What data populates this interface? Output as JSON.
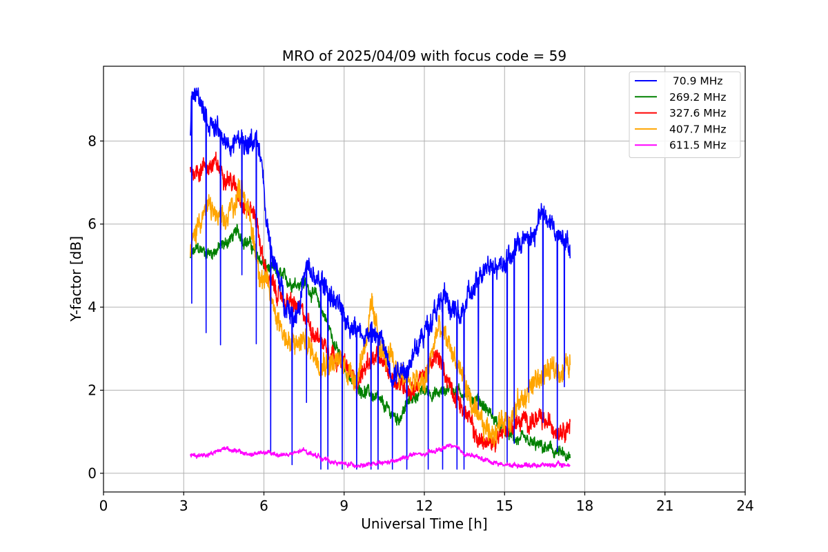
{
  "chart_data": {
    "type": "line",
    "title": "MRO of 2025/04/09 with focus code = 59",
    "xlabel": "Universal Time [h]",
    "ylabel": "Y-factor [dB]",
    "xlim": [
      0,
      24
    ],
    "ylim": [
      -0.45,
      9.8
    ],
    "xticks": [
      0,
      3,
      6,
      9,
      12,
      15,
      18,
      21,
      24
    ],
    "yticks": [
      0,
      2,
      4,
      6,
      8
    ],
    "grid": true,
    "legend_position": "top-right",
    "series": [
      {
        "name": " 70.9 MHz",
        "color": "#0000ff",
        "noise": 0.35,
        "dips": true,
        "x": [
          3.25,
          3.3,
          3.5,
          3.8,
          4.2,
          4.6,
          5.0,
          5.4,
          5.7,
          5.9,
          6.1,
          6.4,
          6.8,
          7.2,
          7.6,
          8.0,
          8.4,
          8.8,
          9.2,
          9.6,
          10.0,
          10.4,
          10.8,
          11.2,
          11.6,
          12.0,
          12.4,
          12.8,
          13.2,
          13.6,
          14.0,
          14.4,
          14.8,
          15.2,
          15.6,
          16.0,
          16.4,
          16.8,
          17.2,
          17.45
        ],
        "y": [
          8.2,
          9.2,
          9.1,
          8.6,
          8.3,
          7.9,
          8.0,
          7.9,
          8.1,
          7.5,
          6.0,
          5.0,
          4.1,
          3.8,
          4.9,
          4.6,
          4.4,
          4.0,
          3.6,
          3.4,
          3.4,
          3.2,
          2.4,
          2.5,
          2.8,
          3.4,
          3.9,
          4.2,
          3.8,
          4.2,
          4.5,
          5.1,
          5.0,
          5.2,
          5.6,
          5.6,
          6.3,
          5.9,
          5.7,
          5.4
        ]
      },
      {
        "name": "269.2 MHz",
        "color": "#008000",
        "noise": 0.2,
        "dips": false,
        "x": [
          3.25,
          3.5,
          4.0,
          4.5,
          5.0,
          5.5,
          6.0,
          6.5,
          7.0,
          7.5,
          8.0,
          8.5,
          9.0,
          9.5,
          10.0,
          10.5,
          11.0,
          11.5,
          12.0,
          12.5,
          13.0,
          13.5,
          14.0,
          14.5,
          15.0,
          15.5,
          16.0,
          16.5,
          17.0,
          17.45
        ],
        "y": [
          5.2,
          5.4,
          5.3,
          5.5,
          5.8,
          5.5,
          5.0,
          4.8,
          4.6,
          4.6,
          4.2,
          3.4,
          2.5,
          2.1,
          1.9,
          1.6,
          1.3,
          1.8,
          2.0,
          1.9,
          2.1,
          1.9,
          1.8,
          1.4,
          1.0,
          0.8,
          0.7,
          0.6,
          0.5,
          0.3
        ]
      },
      {
        "name": "327.6 MHz",
        "color": "#ff0000",
        "noise": 0.3,
        "dips": false,
        "x": [
          3.25,
          3.5,
          3.8,
          4.2,
          4.6,
          5.0,
          5.4,
          5.7,
          6.0,
          6.3,
          6.7,
          7.2,
          7.6,
          8.0,
          8.5,
          9.0,
          9.5,
          10.0,
          10.5,
          11.0,
          11.5,
          12.0,
          12.5,
          13.0,
          13.5,
          14.0,
          14.5,
          15.0,
          15.5,
          16.0,
          16.5,
          17.0,
          17.45
        ],
        "y": [
          7.3,
          7.3,
          7.4,
          7.4,
          7.2,
          6.8,
          6.4,
          6.2,
          5.0,
          4.5,
          4.2,
          4.0,
          3.7,
          3.3,
          3.0,
          2.6,
          2.2,
          2.8,
          2.6,
          2.2,
          2.0,
          2.4,
          2.8,
          2.1,
          1.5,
          0.8,
          0.7,
          1.1,
          1.2,
          1.3,
          1.2,
          1.1,
          1.2
        ]
      },
      {
        "name": "407.7 MHz",
        "color": "#ffa500",
        "noise": 0.4,
        "dips": false,
        "x": [
          3.25,
          3.6,
          4.0,
          4.5,
          4.8,
          5.2,
          5.5,
          5.8,
          6.1,
          6.5,
          7.0,
          7.5,
          8.0,
          8.5,
          9.0,
          9.5,
          10.0,
          10.5,
          11.0,
          11.5,
          12.0,
          12.5,
          13.0,
          13.5,
          14.0,
          14.5,
          15.0,
          15.5,
          16.0,
          16.5,
          17.0,
          17.45
        ],
        "y": [
          5.3,
          6.2,
          6.4,
          5.9,
          6.4,
          7.0,
          6.0,
          5.0,
          4.5,
          3.8,
          3.0,
          3.2,
          2.8,
          2.7,
          2.6,
          2.3,
          3.9,
          2.8,
          2.5,
          2.2,
          2.1,
          3.5,
          3.0,
          2.2,
          1.2,
          1.0,
          1.3,
          1.6,
          2.1,
          2.4,
          2.5,
          2.6
        ]
      },
      {
        "name": "611.5 MHz",
        "color": "#ff00ff",
        "noise": 0.07,
        "dips": false,
        "x": [
          3.25,
          3.8,
          4.2,
          4.6,
          5.0,
          5.5,
          6.0,
          6.5,
          7.0,
          7.5,
          8.0,
          8.5,
          9.0,
          9.5,
          10.0,
          10.5,
          11.0,
          11.5,
          12.0,
          12.5,
          13.0,
          13.5,
          14.0,
          14.5,
          15.0,
          15.5,
          16.0,
          16.5,
          17.0,
          17.45
        ],
        "y": [
          0.42,
          0.45,
          0.52,
          0.62,
          0.52,
          0.45,
          0.5,
          0.45,
          0.45,
          0.55,
          0.42,
          0.28,
          0.22,
          0.2,
          0.2,
          0.25,
          0.3,
          0.45,
          0.45,
          0.55,
          0.68,
          0.48,
          0.38,
          0.28,
          0.2,
          0.2,
          0.2,
          0.2,
          0.2,
          0.2
        ]
      }
    ]
  }
}
